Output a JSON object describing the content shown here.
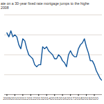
{
  "chart_data": {
    "type": "line",
    "title": "ate on a 30-year fixed rate mortgage jumps to the highe\n2008",
    "x": [
      2009,
      2009.25,
      2009.5,
      2009.75,
      2010,
      2010.25,
      2010.5,
      2010.75,
      2011,
      2011.25,
      2011.5,
      2011.75,
      2012,
      2012.25,
      2012.5,
      2012.75,
      2013,
      2013.25,
      2013.5,
      2013.75,
      2014,
      2014.25,
      2014.5,
      2014.75,
      2015,
      2015.25,
      2015.5,
      2015.75,
      2016,
      2016.25,
      2016.5,
      2016.75,
      2017,
      2017.25,
      2017.5,
      2017.75,
      2018,
      2018.25,
      2018.5,
      2018.75,
      2019,
      2019.25,
      2019.5,
      2019.75,
      2020,
      2020.25,
      2020.5,
      2020.75,
      2021
    ],
    "values": [
      5.1,
      4.9,
      5.2,
      4.9,
      5.0,
      4.9,
      4.5,
      4.3,
      4.8,
      4.7,
      4.3,
      4.0,
      3.9,
      3.8,
      3.5,
      3.4,
      3.5,
      3.5,
      4.4,
      4.3,
      4.4,
      4.2,
      4.1,
      4.0,
      3.8,
      3.8,
      4.0,
      3.9,
      3.7,
      3.6,
      3.4,
      4.0,
      4.2,
      4.0,
      3.9,
      3.9,
      4.3,
      4.5,
      4.6,
      4.8,
      4.4,
      4.1,
      3.7,
      3.7,
      3.5,
      3.2,
      3.0,
      2.8,
      2.7
    ],
    "color": "#0f5499",
    "xlim": [
      2008.7,
      2021
    ],
    "xticks": [
      2009,
      2010,
      2011,
      2012,
      2013,
      2014,
      2015,
      2016,
      2017,
      2018,
      2019,
      2020
    ],
    "ylim": [
      2,
      6
    ],
    "yticks": [
      2,
      3,
      4,
      5,
      6
    ],
    "grid": true,
    "tick_labels": "x"
  }
}
